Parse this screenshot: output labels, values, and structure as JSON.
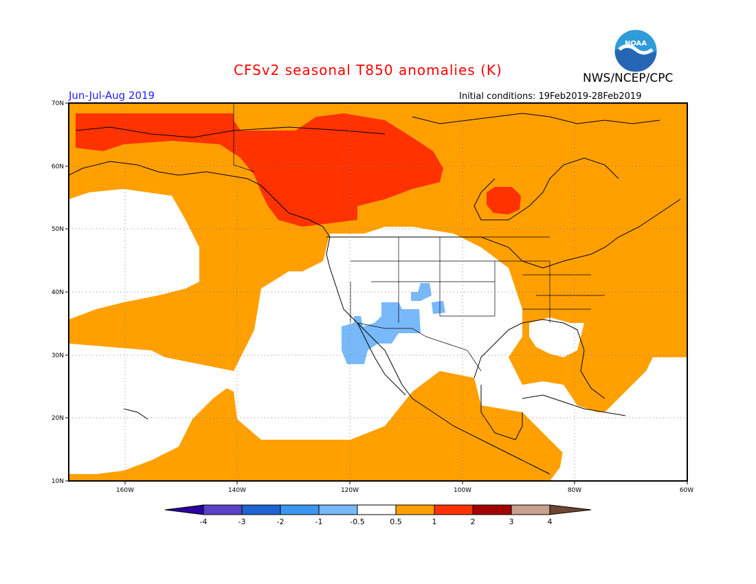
{
  "header": {
    "title": "CFSv2 seasonal T850 anomalies (K)",
    "agency": "NWS/NCEP/CPC",
    "period": "Jun-Jul-Aug 2019",
    "initial_conditions": "Initial conditions: 19Feb2019-28Feb2019",
    "logo_text": "NOAA"
  },
  "map": {
    "lon_range": [
      -172,
      -60
    ],
    "lat_range": [
      10,
      70
    ],
    "lat_ticks": [
      "70N",
      "60N",
      "50N",
      "40N",
      "30N",
      "20N",
      "10N"
    ],
    "lon_ticks": [
      "160W",
      "140W",
      "120W",
      "100W",
      "80W",
      "60W"
    ],
    "grid": true
  },
  "colorbar": {
    "labels": [
      "-4",
      "-3",
      "-2",
      "-1",
      "-0.5",
      "0.5",
      "1",
      "2",
      "3",
      "4"
    ],
    "colors": [
      "#2800a0",
      "#5a41c8",
      "#1e64d2",
      "#3c96f0",
      "#78b9fa",
      "#ffffff",
      "#ffa000",
      "#ff3200",
      "#a50000",
      "#c8a08c",
      "#6e4632"
    ]
  },
  "regions": [
    {
      "name": "arctic-north-america",
      "anomaly_class": "1 to 2"
    },
    {
      "name": "western-canada-alaska",
      "anomaly_class": "1 to 2"
    },
    {
      "name": "hudson-bay-spot",
      "anomaly_class": "1 to 2"
    },
    {
      "name": "north-pacific-ocean",
      "anomaly_class": "0.5 to 1"
    },
    {
      "name": "eastern-us-atlantic",
      "anomaly_class": "0.5 to 1"
    },
    {
      "name": "eastern-pacific",
      "anomaly_class": "-0.5 to 0.5"
    },
    {
      "name": "central-us",
      "anomaly_class": "-0.5 to 0.5"
    },
    {
      "name": "southwest-us-baja",
      "anomaly_class": "-1 to -0.5"
    }
  ]
}
